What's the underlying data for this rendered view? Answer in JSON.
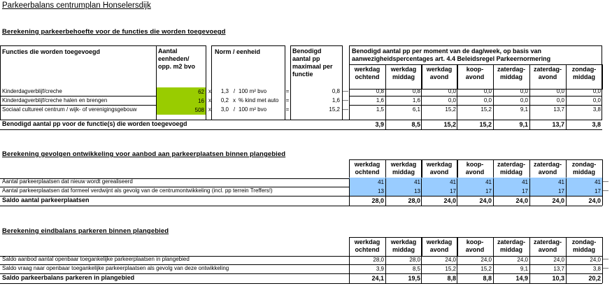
{
  "title": "Parkeerbalans centrumplan Honselersdijk",
  "section1": {
    "heading": "Berekening parkeerbehoefte voor de functies die worden toegevoegd",
    "col_functie": "Functies die worden toegevoegd",
    "col_aantal": [
      "Aantal",
      "eenheden/",
      "opp. m2 bvo"
    ],
    "col_norm": "Norm / eenheid",
    "col_benodigd": [
      "Benodigd",
      "aantal pp",
      "maximaal per",
      "functie"
    ],
    "col_moment": [
      "Benodigd aantal pp per moment van de dag/week, op basis van",
      "aanwezigheidspercentages art. 4.4 Beleidsregel Parkeernormering"
    ],
    "rows": [
      {
        "functie": "Kinderdagverblijf/creche",
        "aantal": "62",
        "x": "x",
        "norm_val": "1,3",
        "norm_sep": "/",
        "norm_unit": "100 m² bvo",
        "eq": "=",
        "benodigd": "0,8",
        "dash": "—",
        "vals": [
          "0,8",
          "0,8",
          "0,0",
          "0,0",
          "0,0",
          "0,0",
          "0,0"
        ]
      },
      {
        "functie": "Kinderdagverblijf/creche halen en brengen",
        "aantal": "16",
        "x": "x",
        "norm_val": "0,2",
        "norm_sep": "x",
        "norm_unit": "% kind met auto",
        "eq": "=",
        "benodigd": "1,6",
        "dash": "—",
        "vals": [
          "1,6",
          "1,6",
          "0,0",
          "0,0",
          "0,0",
          "0,0",
          "0,0"
        ]
      },
      {
        "functie": "Sociaal cultureel centrum / wijk- of verenigingsgebouw",
        "aantal": "508",
        "x": "x",
        "norm_val": "3,0",
        "norm_sep": "/",
        "norm_unit": "100 m² bvo",
        "eq": "=",
        "benodigd": "15,2",
        "dash": "—",
        "vals": [
          "1,5",
          "6,1",
          "15,2",
          "15,2",
          "9,1",
          "13,7",
          "3,8"
        ]
      }
    ],
    "total_label": "Benodigd aantal pp voor de functie(s) die worden toegevoegd",
    "totals": [
      "3,9",
      "8,5",
      "15,2",
      "15,2",
      "9,1",
      "13,7",
      "3,8"
    ]
  },
  "moments": [
    [
      "werkdag",
      "ochtend"
    ],
    [
      "werkdag",
      "middag"
    ],
    [
      "werkdag",
      "avond"
    ],
    [
      "koop-",
      "avond"
    ],
    [
      "zaterdag-",
      "middag"
    ],
    [
      "zaterdag-",
      "avond"
    ],
    [
      "zondag-",
      "middag"
    ]
  ],
  "section2": {
    "heading": "Berekening gevolgen ontwikkeling voor aanbod aan parkeerplaatsen binnen plangebied",
    "rows": [
      {
        "label": "Aantal parkeerplaatsen dat nieuw wordt gerealiseerd",
        "vals": [
          "41",
          "41",
          "41",
          "41",
          "41",
          "41",
          "41"
        ]
      },
      {
        "label": "Aantal parkeerplaatsen dat formeel verdwijnt als gevolg van de centrumontwikkeling (incl. pp terrein Treffers!)",
        "vals": [
          "13",
          "13",
          "17",
          "17",
          "17",
          "17",
          "17"
        ]
      }
    ],
    "dash": "—",
    "total_label": "Saldo aantal parkeerplaatsen",
    "totals": [
      "28,0",
      "28,0",
      "24,0",
      "24,0",
      "24,0",
      "24,0",
      "24,0"
    ]
  },
  "section3": {
    "heading": "Berekening eindbalans parkeren binnen plangebied",
    "rows": [
      {
        "label": "Saldo aanbod aantal openbaar toegankelijke parkeerplaatsen in plangebied",
        "vals": [
          "28,0",
          "28,0",
          "24,0",
          "24,0",
          "24,0",
          "24,0",
          "24,0"
        ]
      },
      {
        "label": "Saldo vraag naar openbaar toegankelijke parkeerplaatsen als gevolg van deze ontwikkeling",
        "vals": [
          "3,9",
          "8,5",
          "15,2",
          "15,2",
          "9,1",
          "13,7",
          "3,8"
        ]
      }
    ],
    "dash": "—",
    "total_label": "Saldo parkeerbalans parkeren in plangebied",
    "totals": [
      "24,1",
      "19,5",
      "8,8",
      "8,8",
      "14,9",
      "10,3",
      "20,2"
    ]
  },
  "colors": {
    "input_green": "#99cc00",
    "input_blue": "#99ccff"
  }
}
